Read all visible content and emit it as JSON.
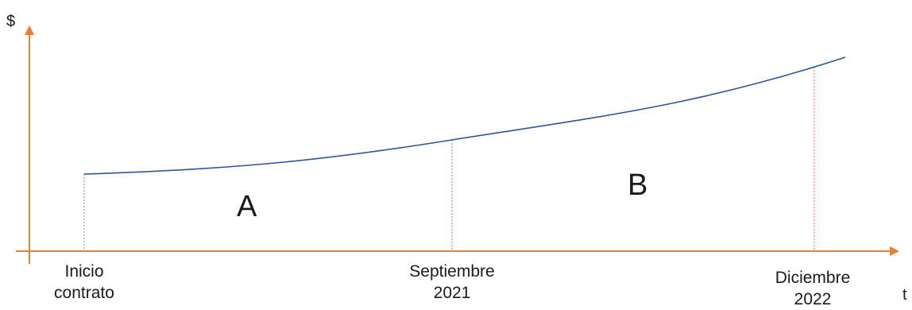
{
  "axes": {
    "y_symbol": "$",
    "x_symbol": "t",
    "axis_color": "#ED7D31"
  },
  "curve": {
    "color": "#2F5597"
  },
  "guides": {
    "color": "#E06070"
  },
  "ticks": [
    {
      "line1": "Inicio",
      "line2": "contrato"
    },
    {
      "line1": "Septiembre",
      "line2": "2021"
    },
    {
      "line1": "Diciembre",
      "line2": "2022"
    }
  ],
  "regions": {
    "a": "A",
    "b": "B"
  }
}
